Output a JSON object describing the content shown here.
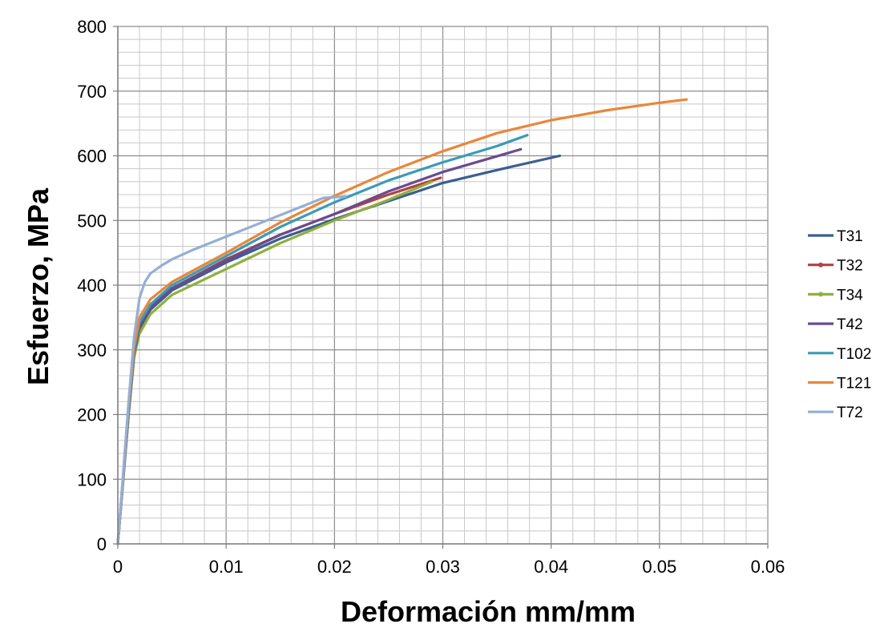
{
  "chart_data": {
    "type": "line",
    "title": "",
    "xlabel": "Deformación mm/mm",
    "ylabel": "Esfuerzo, MPa",
    "xlim": [
      0,
      0.06
    ],
    "ylim": [
      0,
      800
    ],
    "xticks": [
      "0",
      "0.01",
      "0.02",
      "0.03",
      "0.04",
      "0.05",
      "0.06"
    ],
    "yticks": [
      "0",
      "100",
      "200",
      "300",
      "400",
      "500",
      "600",
      "700",
      "800"
    ],
    "grid": true,
    "legend_position": "right",
    "series": [
      {
        "name": "T31",
        "color": "#3b5e8f",
        "marker": "none",
        "x": [
          0,
          0.001,
          0.0015,
          0.002,
          0.003,
          0.005,
          0.01,
          0.015,
          0.02,
          0.025,
          0.03,
          0.035,
          0.0408
        ],
        "y": [
          0,
          200,
          290,
          330,
          362,
          392,
          435,
          472,
          502,
          530,
          558,
          578,
          600
        ]
      },
      {
        "name": "T32",
        "color": "#b5413e",
        "marker": "dot",
        "x": [
          0,
          0.001,
          0.0015,
          0.002,
          0.003,
          0.005,
          0.01,
          0.015,
          0.02,
          0.025,
          0.0298
        ],
        "y": [
          0,
          205,
          295,
          338,
          367,
          395,
          440,
          478,
          510,
          540,
          566
        ]
      },
      {
        "name": "T34",
        "color": "#8fb03e",
        "marker": "dot",
        "x": [
          0,
          0.001,
          0.0015,
          0.002,
          0.003,
          0.005,
          0.01,
          0.015,
          0.02,
          0.025,
          0.029
        ],
        "y": [
          0,
          200,
          288,
          325,
          355,
          385,
          425,
          465,
          500,
          532,
          560
        ]
      },
      {
        "name": "T42",
        "color": "#6a4b8f",
        "marker": "none",
        "x": [
          0,
          0.001,
          0.0015,
          0.002,
          0.003,
          0.005,
          0.01,
          0.015,
          0.02,
          0.025,
          0.03,
          0.0372
        ],
        "y": [
          0,
          205,
          295,
          335,
          365,
          395,
          438,
          478,
          510,
          545,
          575,
          610
        ]
      },
      {
        "name": "T102",
        "color": "#3a9bb5",
        "marker": "none",
        "x": [
          0,
          0.001,
          0.0015,
          0.002,
          0.003,
          0.005,
          0.01,
          0.015,
          0.02,
          0.025,
          0.03,
          0.035,
          0.0378
        ],
        "y": [
          0,
          210,
          300,
          342,
          370,
          400,
          445,
          490,
          528,
          562,
          590,
          615,
          632
        ]
      },
      {
        "name": "T121",
        "color": "#e8873a",
        "marker": "none",
        "x": [
          0,
          0.001,
          0.0015,
          0.002,
          0.003,
          0.005,
          0.01,
          0.015,
          0.02,
          0.025,
          0.03,
          0.035,
          0.04,
          0.045,
          0.05,
          0.0525
        ],
        "y": [
          0,
          215,
          305,
          350,
          378,
          405,
          450,
          497,
          538,
          575,
          607,
          635,
          655,
          670,
          682,
          687
        ]
      },
      {
        "name": "T72",
        "color": "#95aed6",
        "marker": "none",
        "x": [
          0,
          0.001,
          0.0015,
          0.002,
          0.0025,
          0.003,
          0.004,
          0.005,
          0.007,
          0.01,
          0.013,
          0.016,
          0.019,
          0.021
        ],
        "y": [
          0,
          220,
          320,
          380,
          405,
          418,
          430,
          440,
          455,
          475,
          495,
          515,
          535,
          537
        ]
      }
    ]
  }
}
